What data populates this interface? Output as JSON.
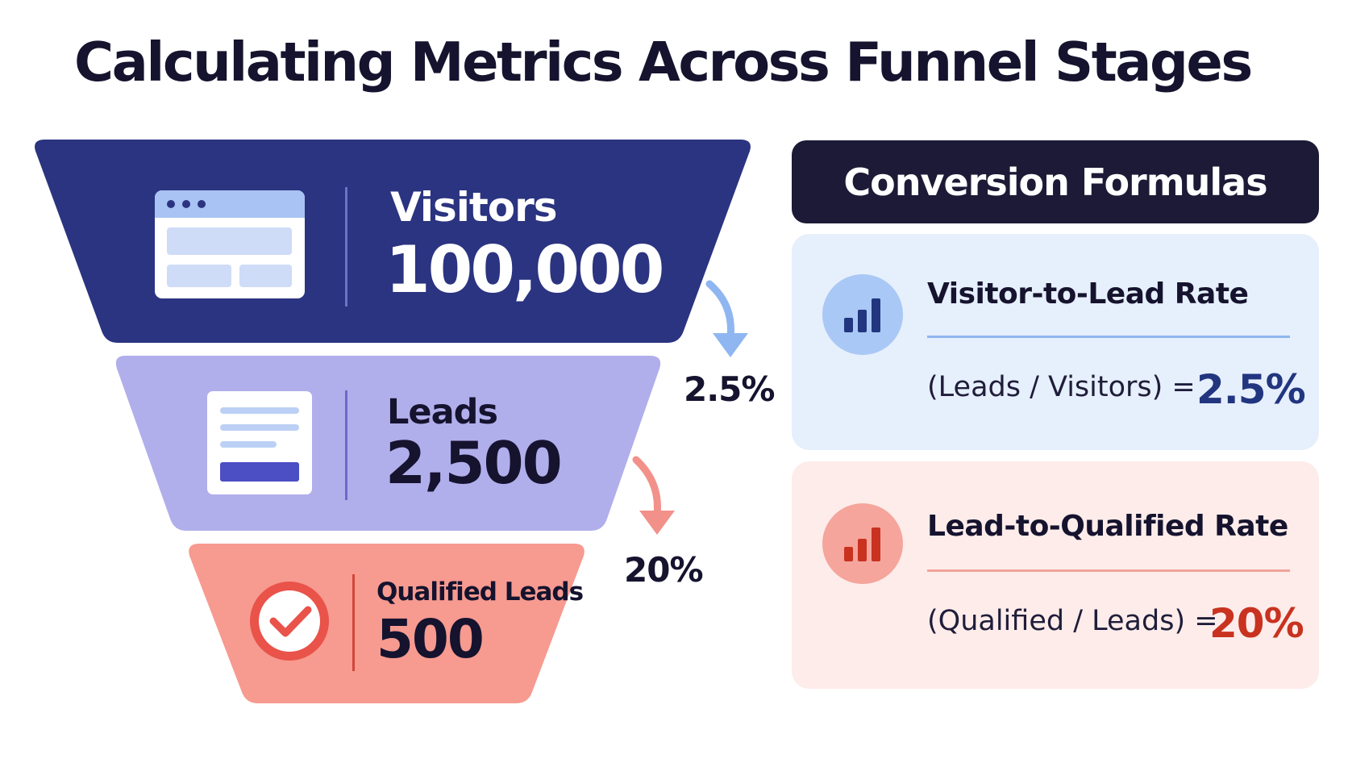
{
  "title": "Calculating Metrics Across Funnel Stages",
  "funnel": {
    "stages": [
      {
        "label": "Visitors",
        "value": "100,000",
        "color": "#2b3480",
        "icon": "browser-window-icon"
      },
      {
        "label": "Leads",
        "value": "2,500",
        "color": "#b1aeec",
        "icon": "form-document-icon"
      },
      {
        "label": "Qualified Leads",
        "value": "500",
        "color": "#f79a90",
        "icon": "checkmark-circle-icon"
      }
    ],
    "conversions": [
      {
        "label": "2.5%",
        "arrow_color": "#8fb6f0"
      },
      {
        "label": "20%",
        "arrow_color": "#f2918a"
      }
    ]
  },
  "panel": {
    "header": "Conversion Formulas",
    "cards": [
      {
        "title": "Visitor-to-Lead Rate",
        "formula": "(Leads / Visitors) =",
        "result": "2.5%",
        "bg": "#e6effc",
        "accent": "#22357f",
        "icon": "bar-chart-icon"
      },
      {
        "title": "Lead-to-Qualified Rate",
        "formula": "(Qualified / Leads) =",
        "result": "20%",
        "bg": "#fdecea",
        "accent": "#c8321f",
        "icon": "bar-chart-icon"
      }
    ]
  }
}
